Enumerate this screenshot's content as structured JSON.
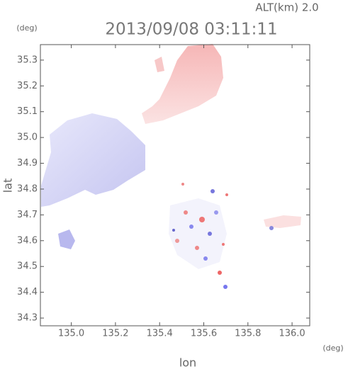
{
  "chart_data": {
    "type": "map",
    "title": "2013/09/08 03:11:11",
    "annotation": "ALT(km) 2.0",
    "xlabel": "lon",
    "ylabel": "lat",
    "x_unit": "(deg)",
    "y_unit": "(deg)",
    "xlim": [
      134.86,
      136.08
    ],
    "ylim": [
      34.27,
      35.36
    ],
    "xticks": [
      {
        "value": 135,
        "label": "135.0"
      },
      135.2,
      135.4,
      135.6,
      135.8,
      {
        "value": 136,
        "label": "136.0"
      }
    ],
    "yticks": [
      34.3,
      34.4,
      34.5,
      34.6,
      34.7,
      34.8,
      34.9,
      {
        "value": 35,
        "label": "35.0"
      },
      35.1,
      35.2,
      35.3
    ]
  }
}
